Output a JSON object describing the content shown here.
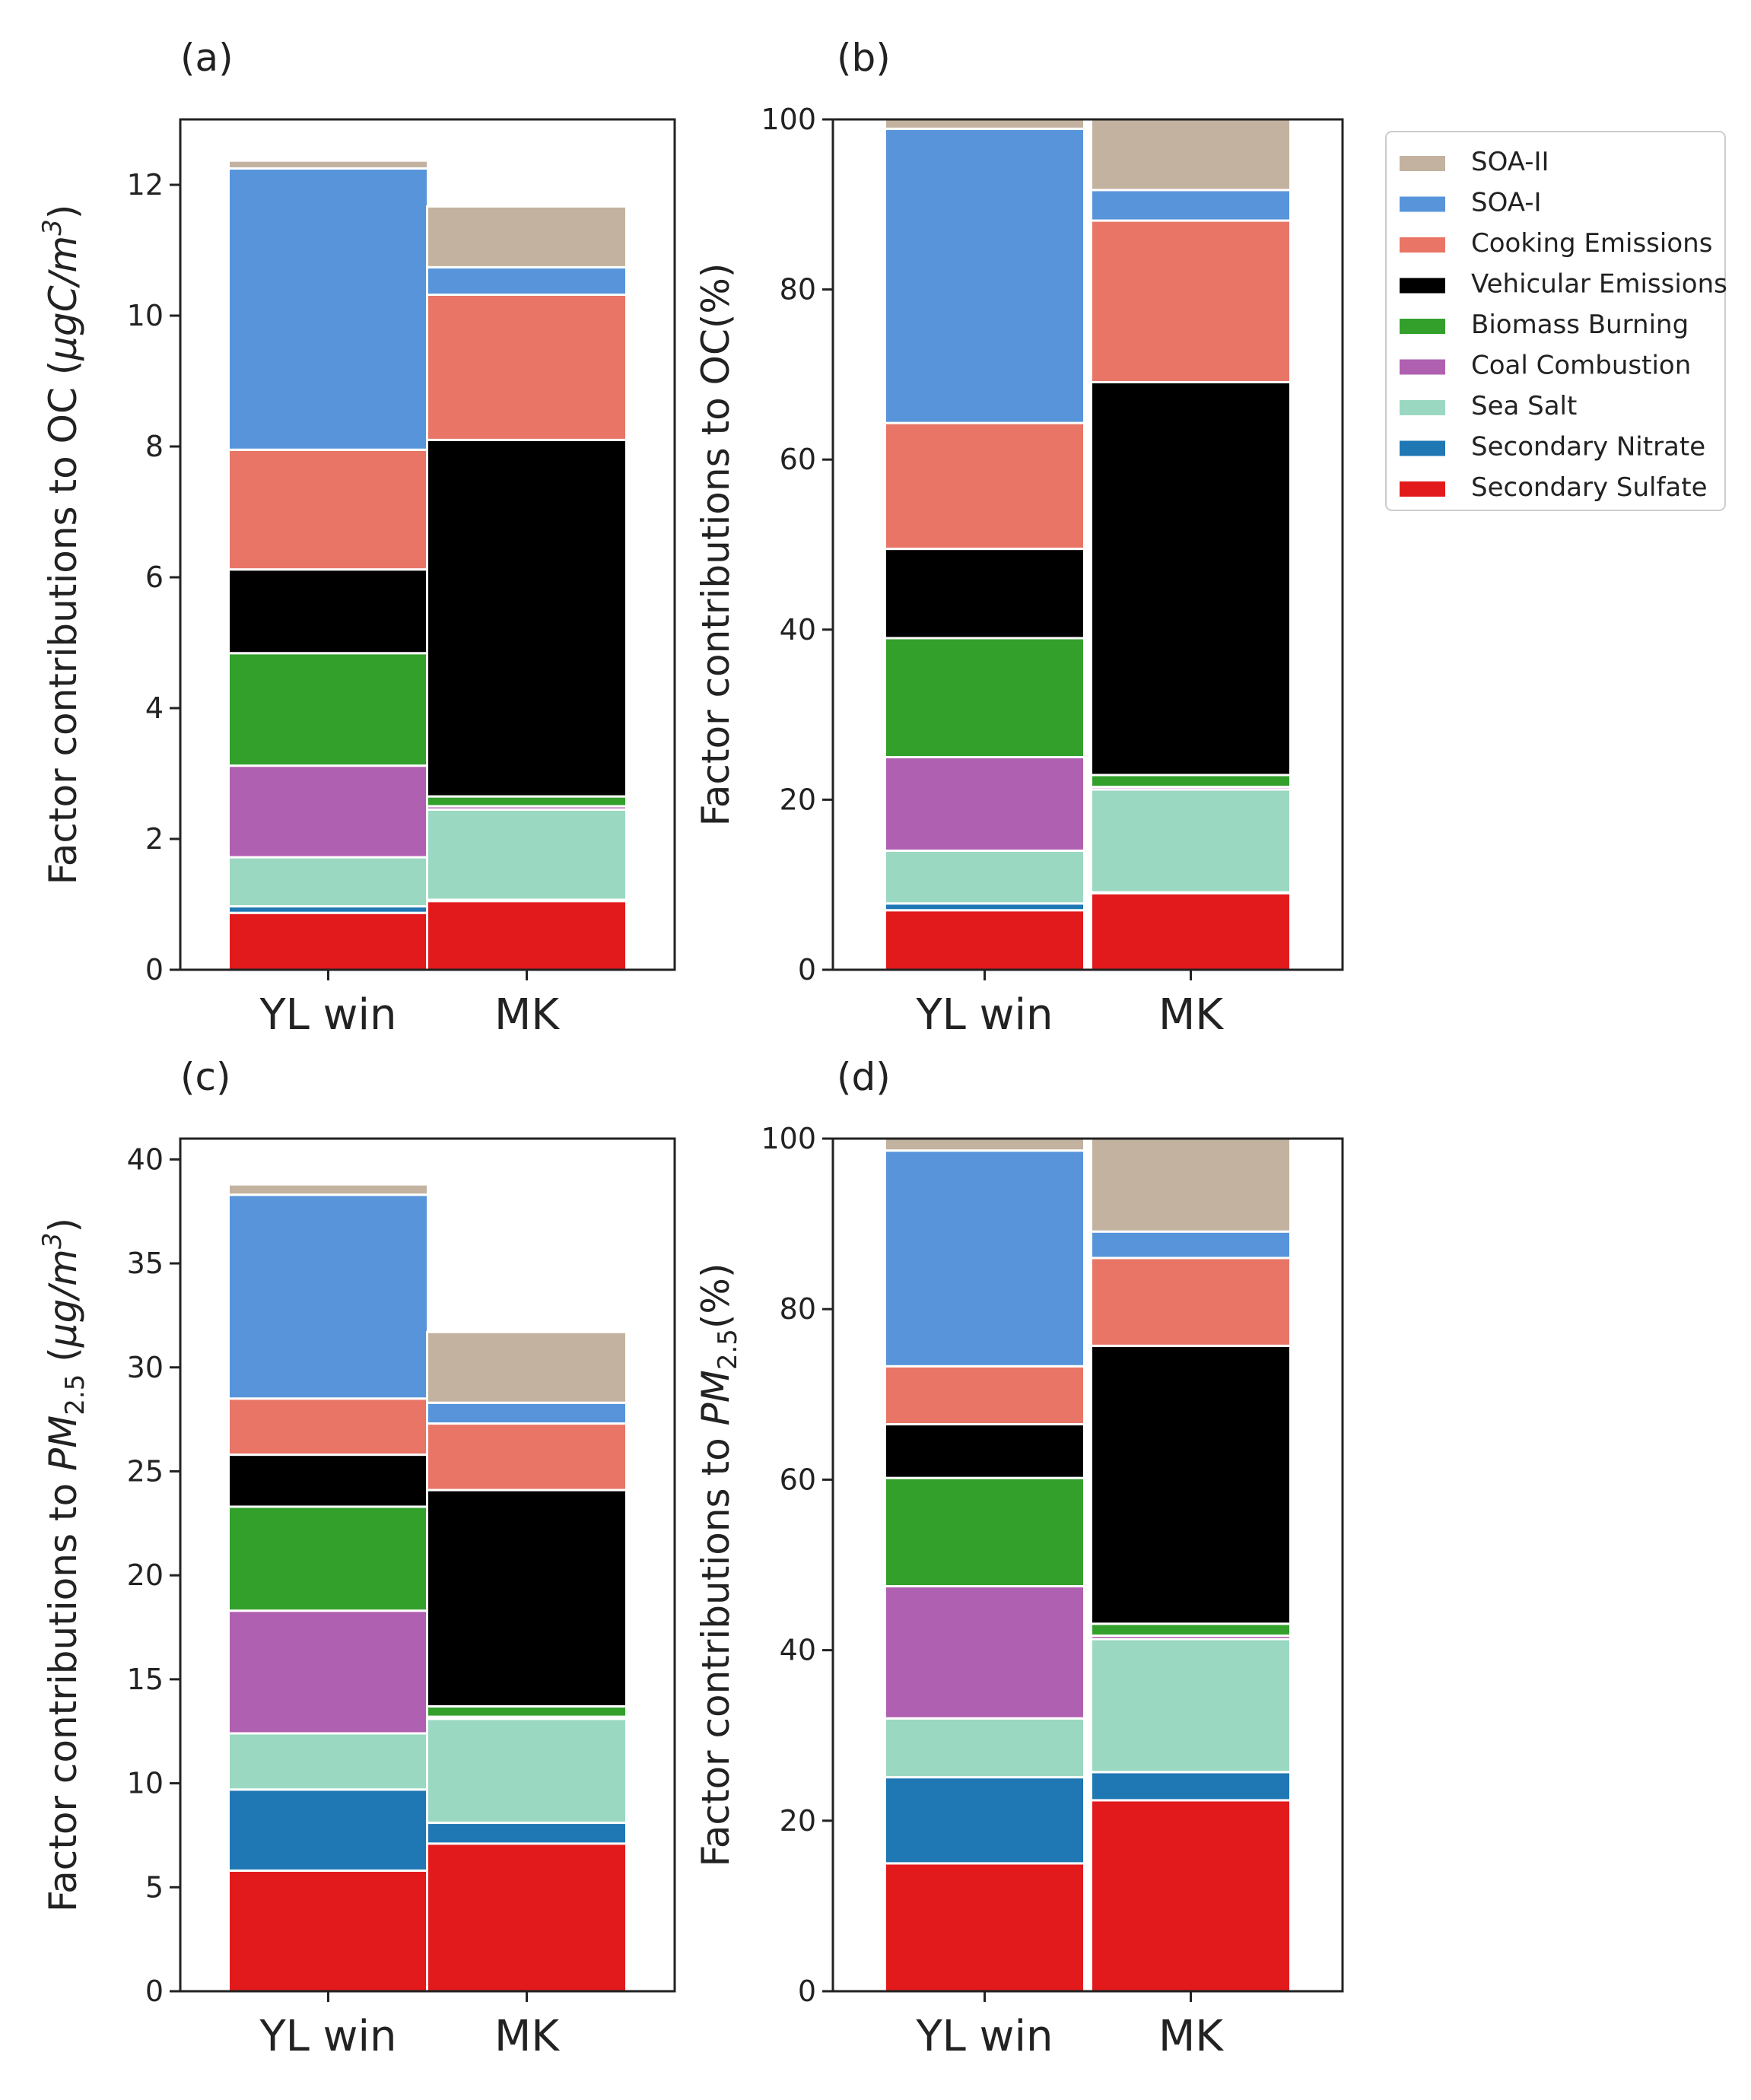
{
  "legend": {
    "entries": [
      {
        "name": "SOA-II",
        "color": "#c2b29f"
      },
      {
        "name": "SOA-I",
        "color": "#5894da"
      },
      {
        "name": "Cooking Emissions",
        "color": "#e87566"
      },
      {
        "name": "Vehicular Emissions",
        "color": "#000000"
      },
      {
        "name": "Biomass Burning",
        "color": "#33a02c"
      },
      {
        "name": "Coal Combustion",
        "color": "#b060b0"
      },
      {
        "name": "Sea Salt",
        "color": "#9ad8c2"
      },
      {
        "name": "Secondary Nitrate",
        "color": "#1f77b4"
      },
      {
        "name": "Secondary Sulfate",
        "color": "#e31a1c"
      }
    ]
  },
  "chart_data": [
    {
      "id": "a",
      "panel_label": "(a)",
      "type": "bar",
      "stacked": true,
      "categories": [
        "YL win",
        "MK"
      ],
      "ylabel": {
        "prefix": "Factor contributions to OC (",
        "italic": "μgC/m",
        "sup": "3",
        "suffix": ")"
      },
      "ylim": [
        0,
        13
      ],
      "yticks": [
        0,
        2,
        4,
        6,
        8,
        10,
        12
      ],
      "series": [
        {
          "name": "Secondary Sulfate",
          "values": [
            0.87,
            1.05
          ]
        },
        {
          "name": "Secondary Nitrate",
          "values": [
            0.1,
            0.02
          ]
        },
        {
          "name": "Sea Salt",
          "values": [
            0.75,
            1.38
          ]
        },
        {
          "name": "Coal Combustion",
          "values": [
            1.4,
            0.05
          ]
        },
        {
          "name": "Biomass Burning",
          "values": [
            1.72,
            0.15
          ]
        },
        {
          "name": "Vehicular Emissions",
          "values": [
            1.28,
            5.45
          ]
        },
        {
          "name": "Cooking Emissions",
          "values": [
            1.83,
            2.22
          ]
        },
        {
          "name": "SOA-I",
          "values": [
            4.3,
            0.42
          ]
        },
        {
          "name": "SOA-II",
          "values": [
            0.12,
            0.93
          ]
        }
      ]
    },
    {
      "id": "b",
      "panel_label": "(b)",
      "type": "bar",
      "stacked": true,
      "categories": [
        "YL win",
        "MK"
      ],
      "ylabel": {
        "prefix": "Factor contributions to OC(%)"
      },
      "ylim": [
        0,
        100
      ],
      "yticks": [
        0,
        20,
        40,
        60,
        80,
        100
      ],
      "series": [
        {
          "name": "Secondary Sulfate",
          "values": [
            7.0,
            9.0
          ]
        },
        {
          "name": "Secondary Nitrate",
          "values": [
            0.8,
            0.1
          ]
        },
        {
          "name": "Sea Salt",
          "values": [
            6.2,
            12.1
          ]
        },
        {
          "name": "Coal Combustion",
          "values": [
            11.0,
            0.3
          ]
        },
        {
          "name": "Biomass Burning",
          "values": [
            14.0,
            1.4
          ]
        },
        {
          "name": "Vehicular Emissions",
          "values": [
            10.5,
            46.2
          ]
        },
        {
          "name": "Cooking Emissions",
          "values": [
            14.8,
            19.0
          ]
        },
        {
          "name": "SOA-I",
          "values": [
            34.6,
            3.6
          ]
        },
        {
          "name": "SOA-II",
          "values": [
            1.1,
            8.3
          ]
        }
      ]
    },
    {
      "id": "c",
      "panel_label": "(c)",
      "type": "bar",
      "stacked": true,
      "categories": [
        "YL win",
        "MK"
      ],
      "ylabel": {
        "prefix": "Factor contributions to ",
        "italic": "PM",
        "sub": "2.5",
        "mid": " (",
        "italic2": "μg/m",
        "sup": "3",
        "suffix": ")"
      },
      "ylim": [
        0,
        41
      ],
      "yticks": [
        0,
        5,
        10,
        15,
        20,
        25,
        30,
        35,
        40
      ],
      "series": [
        {
          "name": "Secondary Sulfate",
          "values": [
            5.8,
            7.1
          ]
        },
        {
          "name": "Secondary Nitrate",
          "values": [
            3.9,
            1.0
          ]
        },
        {
          "name": "Sea Salt",
          "values": [
            2.7,
            5.0
          ]
        },
        {
          "name": "Coal Combustion",
          "values": [
            5.9,
            0.1
          ]
        },
        {
          "name": "Biomass Burning",
          "values": [
            5.0,
            0.5
          ]
        },
        {
          "name": "Vehicular Emissions",
          "values": [
            2.5,
            10.4
          ]
        },
        {
          "name": "Cooking Emissions",
          "values": [
            2.7,
            3.2
          ]
        },
        {
          "name": "SOA-I",
          "values": [
            9.8,
            1.0
          ]
        },
        {
          "name": "SOA-II",
          "values": [
            0.5,
            3.4
          ]
        }
      ]
    },
    {
      "id": "d",
      "panel_label": "(d)",
      "type": "bar",
      "stacked": true,
      "categories": [
        "YL win",
        "MK"
      ],
      "ylabel": {
        "prefix": "Factor contributions to ",
        "italic": "PM",
        "sub": "2.5",
        "suffix": "(%)"
      },
      "ylim": [
        0,
        100
      ],
      "yticks": [
        0,
        20,
        40,
        60,
        80,
        100
      ],
      "series": [
        {
          "name": "Secondary Sulfate",
          "values": [
            15.0,
            22.4
          ]
        },
        {
          "name": "Secondary Nitrate",
          "values": [
            10.1,
            3.3
          ]
        },
        {
          "name": "Sea Salt",
          "values": [
            6.9,
            15.6
          ]
        },
        {
          "name": "Coal Combustion",
          "values": [
            15.5,
            0.4
          ]
        },
        {
          "name": "Biomass Burning",
          "values": [
            12.7,
            1.4
          ]
        },
        {
          "name": "Vehicular Emissions",
          "values": [
            6.3,
            32.6
          ]
        },
        {
          "name": "Cooking Emissions",
          "values": [
            6.8,
            10.3
          ]
        },
        {
          "name": "SOA-I",
          "values": [
            25.3,
            3.1
          ]
        },
        {
          "name": "SOA-II",
          "values": [
            1.4,
            10.9
          ]
        }
      ]
    }
  ]
}
